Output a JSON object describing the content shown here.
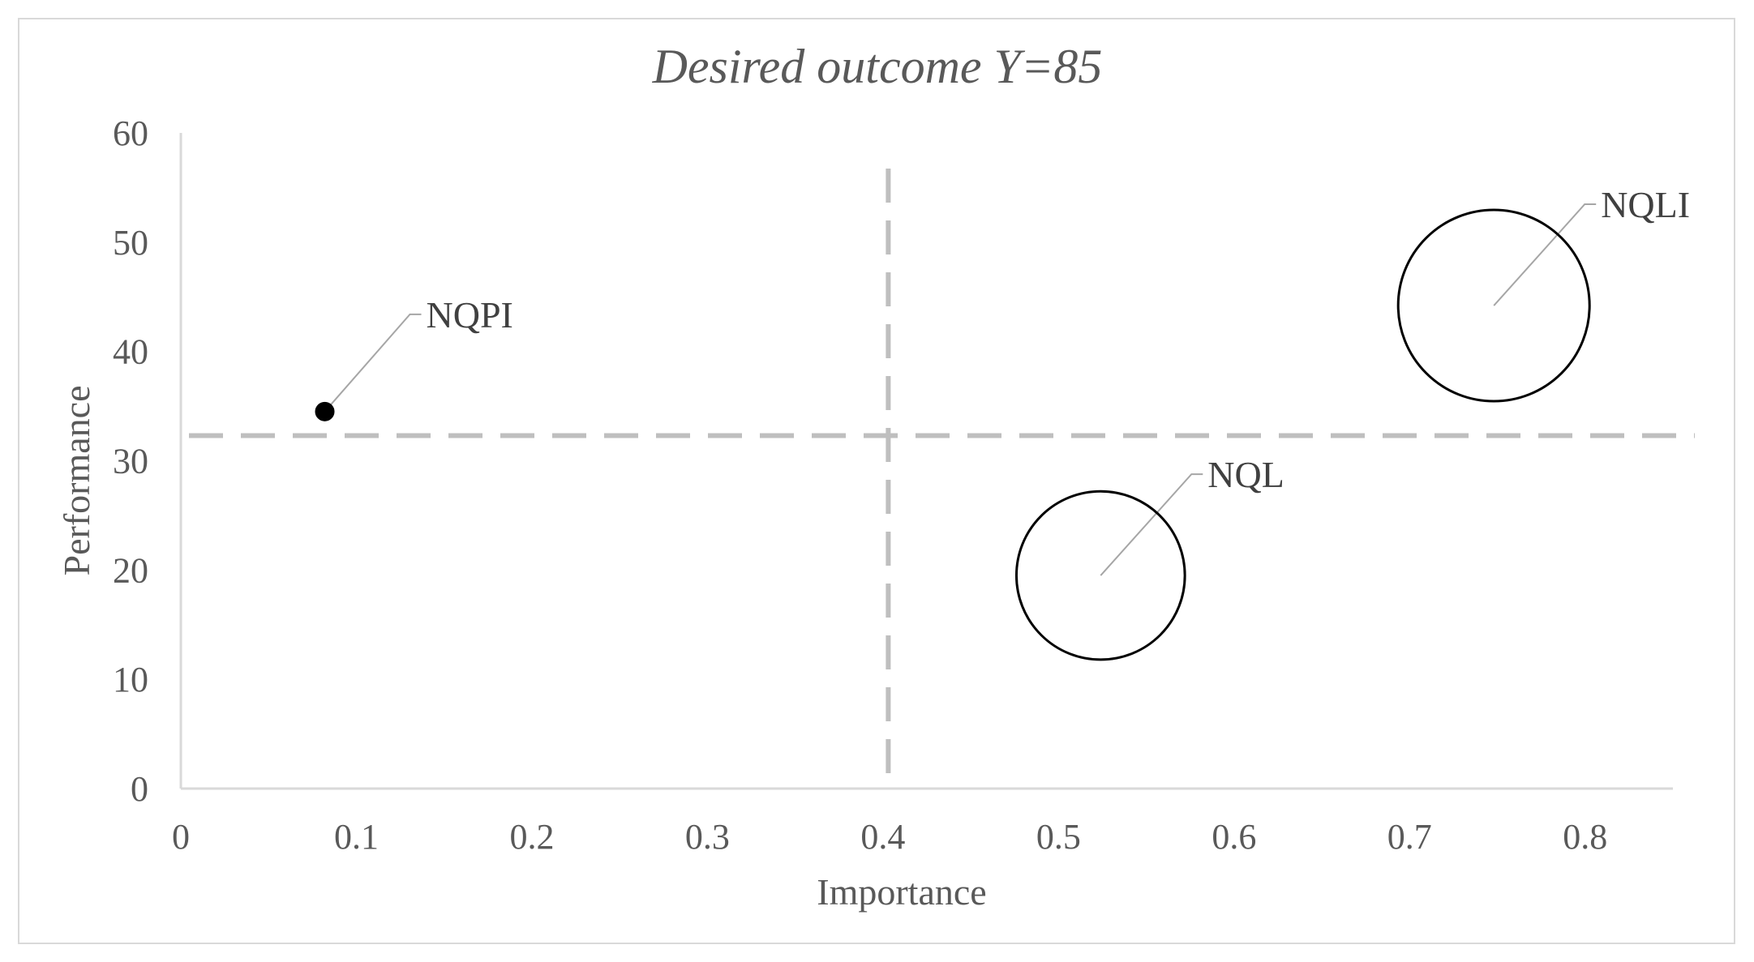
{
  "chart_data": {
    "type": "bubble",
    "title": "Desired outcome Y=85",
    "xlabel": "Importance",
    "ylabel": "Performance",
    "xlim": [
      0,
      0.85
    ],
    "ylim": [
      0,
      60
    ],
    "x_ticks": [
      0,
      0.1,
      0.2,
      0.3,
      0.4,
      0.5,
      0.6,
      0.7,
      0.8
    ],
    "x_tick_labels": [
      "0",
      "0.1",
      "0.2",
      "0.3",
      "0.4",
      "0.5",
      "0.6",
      "0.7",
      "0.8"
    ],
    "y_ticks": [
      0,
      10,
      20,
      30,
      40,
      50,
      60
    ],
    "y_tick_labels": [
      "0",
      "10",
      "20",
      "30",
      "40",
      "50",
      "60"
    ],
    "grid": false,
    "legend": "none",
    "reference_lines": {
      "x": 0.403,
      "y": 32.3
    },
    "points": [
      {
        "label": "NQPI",
        "x": 0.082,
        "y": 34.5,
        "relative_size": 0.05,
        "filled": true
      },
      {
        "label": "NQL",
        "x": 0.524,
        "y": 19.5,
        "relative_size": 0.88,
        "filled": false
      },
      {
        "label": "NQLI",
        "x": 0.748,
        "y": 44.2,
        "relative_size": 1.0,
        "filled": false
      }
    ],
    "colors": {
      "axis": "#d9d9d9",
      "reference_line": "#bfbfbf",
      "bubble_stroke": "#000000",
      "filled_point": "#000000",
      "leader_line": "#a6a6a6",
      "text": "#595959"
    }
  }
}
